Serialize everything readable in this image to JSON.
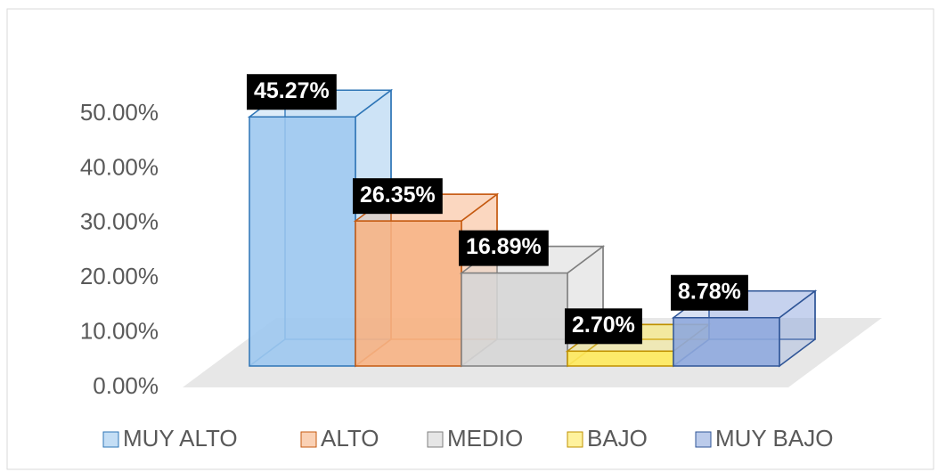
{
  "chart_data": {
    "type": "bar3d",
    "categories": [
      "MUY ALTO",
      "ALTO",
      "MEDIO",
      "BAJO",
      "MUY BAJO"
    ],
    "values": [
      45.27,
      26.35,
      16.89,
      2.7,
      8.78
    ],
    "value_labels": [
      "45.27%",
      "26.35%",
      "16.89%",
      "2.70%",
      "8.78%"
    ],
    "colors": [
      "#9dc8ef",
      "#f7b384",
      "#d6d6d6",
      "#ffea5c",
      "#8ea9de"
    ],
    "ylim": [
      0,
      50
    ],
    "yticks": [
      {
        "value": 0,
        "label": "0.00%"
      },
      {
        "value": 10,
        "label": "10.00%"
      },
      {
        "value": 20,
        "label": "20.00%"
      },
      {
        "value": 30,
        "label": "30.00%"
      },
      {
        "value": 40,
        "label": "40.00%"
      },
      {
        "value": 50,
        "label": "50.00%"
      }
    ],
    "legend": "bottom"
  }
}
